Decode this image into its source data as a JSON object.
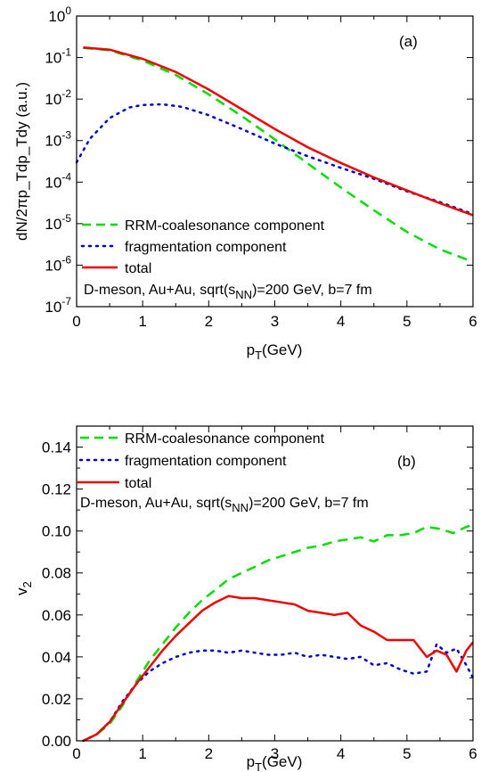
{
  "chart_data": [
    {
      "type": "line",
      "panel_label": "(a)",
      "xlabel_main": "p",
      "xlabel_sub": "T",
      "xlabel_unit": "(GeV)",
      "ylabel": "dN/2πp_Tdp_Tdy (a.u.)",
      "yscale": "log",
      "xlim": [
        0,
        6
      ],
      "ylim": [
        1e-07,
        1
      ],
      "x_ticks": [
        "0",
        "1",
        "2",
        "3",
        "4",
        "5",
        "6"
      ],
      "y_tick_exponents": [
        "0",
        "-1",
        "-2",
        "-3",
        "-4",
        "-5",
        "-6",
        "-7"
      ],
      "annotation_main": "D-meson, Au+Au, sqrt(s",
      "annotation_sub": "NN",
      "annotation_tail": ")=200 GeV, b=7 fm",
      "legend_position": "bottom-left",
      "series": [
        {
          "name": "RRM-coalesonance component",
          "color": "#00dd00",
          "dash": "dashed",
          "x": [
            0.1,
            0.5,
            1.0,
            1.5,
            2.0,
            2.5,
            3.0,
            3.5,
            4.0,
            4.5,
            5.0,
            5.5,
            6.0
          ],
          "y": [
            0.17,
            0.15,
            0.085,
            0.038,
            0.013,
            0.0039,
            0.00107,
            0.00028,
            7.4e-05,
            2.1e-05,
            6.3e-06,
            2.4e-06,
            1.2e-06
          ]
        },
        {
          "name": "fragmentation component",
          "color": "#0000cc",
          "dash": "dotted",
          "x": [
            0.0,
            0.2,
            0.5,
            0.8,
            1.0,
            1.3,
            1.6,
            2.0,
            2.5,
            3.0,
            3.5,
            4.0,
            4.5,
            5.0,
            5.5,
            6.0
          ],
          "y": [
            0.0003,
            0.0011,
            0.0035,
            0.0063,
            0.0072,
            0.0075,
            0.0065,
            0.0041,
            0.0019,
            0.00085,
            0.00042,
            0.00022,
            0.00012,
            6e-05,
            3.3e-05,
            1.7e-05
          ]
        },
        {
          "name": "total",
          "color": "#ee0000",
          "dash": "solid",
          "x": [
            0.1,
            0.5,
            1.0,
            1.5,
            2.0,
            2.5,
            3.0,
            3.5,
            4.0,
            4.5,
            5.0,
            5.5,
            6.0
          ],
          "y": [
            0.175,
            0.155,
            0.093,
            0.045,
            0.017,
            0.0057,
            0.0019,
            0.00069,
            0.00029,
            0.00013,
            6.3e-05,
            3.1e-05,
            1.6e-05
          ]
        }
      ]
    },
    {
      "type": "line",
      "panel_label": "(b)",
      "xlabel_main": "p",
      "xlabel_sub": "T",
      "xlabel_unit": "(GeV)",
      "ylabel_main": "v",
      "ylabel_sub": "2",
      "xlim": [
        0,
        6
      ],
      "ylim": [
        0,
        0.15
      ],
      "x_ticks": [
        "0",
        "1",
        "2",
        "3",
        "4",
        "5",
        "6"
      ],
      "y_ticks": [
        "0.00",
        "0.02",
        "0.04",
        "0.06",
        "0.08",
        "0.10",
        "0.12",
        "0.14"
      ],
      "annotation_main": "D-meson, Au+Au, sqrt(s",
      "annotation_sub": "NN",
      "annotation_tail": ")=200 GeV, b=7 fm",
      "legend_position": "top-left",
      "series": [
        {
          "name": "RRM-coalesonance component",
          "color": "#00dd00",
          "dash": "dashed",
          "x": [
            0.1,
            0.3,
            0.5,
            0.7,
            0.9,
            1.1,
            1.3,
            1.5,
            1.7,
            1.9,
            2.1,
            2.3,
            2.5,
            2.7,
            2.9,
            3.1,
            3.3,
            3.5,
            3.7,
            3.9,
            4.1,
            4.3,
            4.5,
            4.7,
            4.9,
            5.1,
            5.3,
            5.5,
            5.7,
            5.9,
            6.0
          ],
          "y": [
            0.0,
            0.003,
            0.008,
            0.017,
            0.028,
            0.038,
            0.046,
            0.054,
            0.061,
            0.067,
            0.072,
            0.077,
            0.08,
            0.083,
            0.086,
            0.088,
            0.09,
            0.092,
            0.093,
            0.095,
            0.096,
            0.097,
            0.095,
            0.098,
            0.098,
            0.099,
            0.102,
            0.101,
            0.099,
            0.102,
            0.103
          ]
        },
        {
          "name": "fragmentation component",
          "color": "#0000cc",
          "dash": "dotted",
          "x": [
            0.1,
            0.3,
            0.5,
            0.7,
            0.9,
            1.1,
            1.3,
            1.5,
            1.7,
            1.9,
            2.1,
            2.3,
            2.5,
            2.7,
            2.9,
            3.1,
            3.3,
            3.5,
            3.7,
            3.9,
            4.1,
            4.3,
            4.5,
            4.7,
            4.9,
            5.1,
            5.3,
            5.45,
            5.6,
            5.75,
            5.9,
            6.0
          ],
          "y": [
            0.0,
            0.003,
            0.009,
            0.019,
            0.027,
            0.033,
            0.037,
            0.04,
            0.042,
            0.043,
            0.043,
            0.042,
            0.043,
            0.042,
            0.041,
            0.041,
            0.042,
            0.04,
            0.041,
            0.04,
            0.039,
            0.04,
            0.036,
            0.037,
            0.034,
            0.032,
            0.033,
            0.046,
            0.042,
            0.044,
            0.036,
            0.03
          ]
        },
        {
          "name": "total",
          "color": "#ee0000",
          "dash": "solid",
          "x": [
            0.1,
            0.3,
            0.5,
            0.7,
            0.9,
            1.1,
            1.3,
            1.5,
            1.7,
            1.9,
            2.1,
            2.3,
            2.5,
            2.7,
            2.9,
            3.1,
            3.3,
            3.5,
            3.7,
            3.9,
            4.1,
            4.3,
            4.5,
            4.7,
            4.9,
            5.1,
            5.3,
            5.45,
            5.6,
            5.75,
            5.9,
            6.0
          ],
          "y": [
            0.0,
            0.003,
            0.009,
            0.018,
            0.027,
            0.035,
            0.043,
            0.05,
            0.056,
            0.062,
            0.066,
            0.069,
            0.068,
            0.068,
            0.067,
            0.066,
            0.065,
            0.062,
            0.061,
            0.06,
            0.061,
            0.055,
            0.052,
            0.048,
            0.048,
            0.048,
            0.04,
            0.043,
            0.041,
            0.033,
            0.043,
            0.047
          ]
        }
      ]
    }
  ]
}
